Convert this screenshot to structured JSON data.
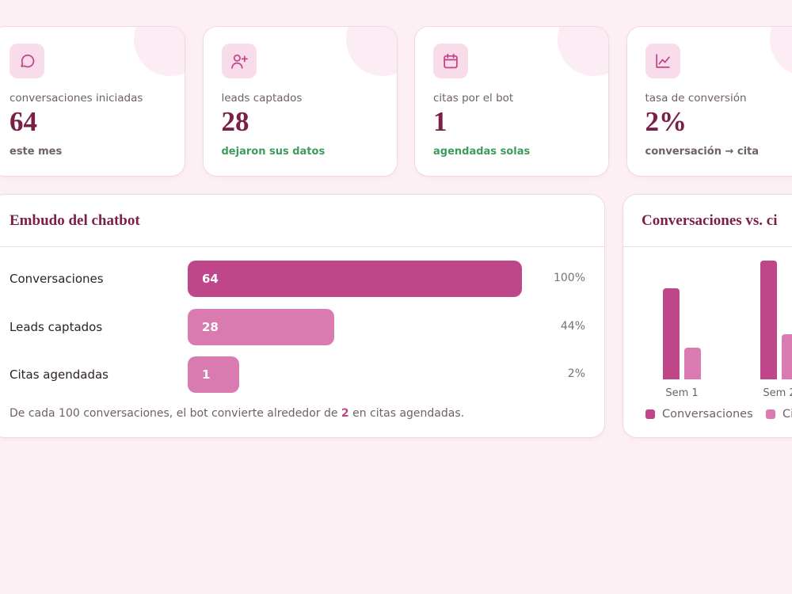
{
  "kpis": [
    {
      "label": "conversaciones iniciadas",
      "value": 64,
      "note": "este mes",
      "note_color": "#6e6166"
    },
    {
      "label": "leads captados",
      "value": 28,
      "note": "dejaron sus datos",
      "note_color": "#3f9a5e"
    },
    {
      "label": "citas por el bot",
      "value": 1,
      "note": "agendadas solas",
      "note_color": "#3f9a5e"
    },
    {
      "label": "tasa de conversión",
      "value": "2%",
      "note": "conversación → cita",
      "note_color": "#6e6166"
    }
  ],
  "funnel": {
    "title": "Embudo del chatbot",
    "stages": [
      {
        "name": "Conversaciones",
        "value": 64,
        "share": "100%",
        "color": "#c0468a"
      },
      {
        "name": "Leads captados",
        "value": 28,
        "share": "44%",
        "color": "#d97bb0"
      },
      {
        "name": "Citas agendadas",
        "value": 1,
        "share": "2%",
        "color": "#d97bb0"
      }
    ],
    "footnote": {
      "before": "De cada 100 conversaciones, el bot convierte alrededor de ",
      "highlight": "2",
      "after": " en citas agendadas."
    }
  },
  "chart_data": {
    "type": "bar",
    "title": "Conversaciones vs. ci",
    "categories": [
      "Sem 1",
      "Sem 2"
    ],
    "series": [
      {
        "name": "Conversaciones",
        "color": "#c0468a",
        "values": [
          23,
          30
        ]
      },
      {
        "name": "Ci",
        "color": "#d97bb0",
        "values": [
          8,
          11.5
        ]
      }
    ],
    "ylim": [
      0,
      32
    ]
  }
}
